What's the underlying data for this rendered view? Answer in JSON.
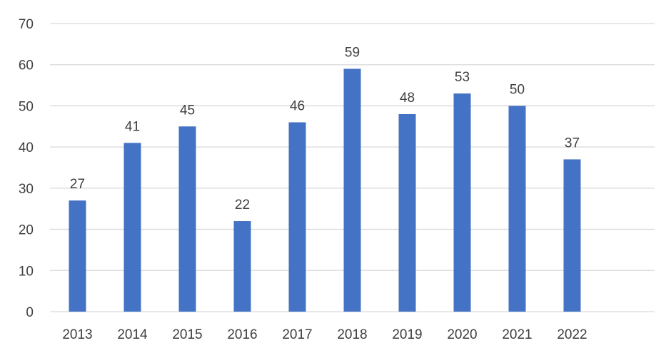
{
  "chart_data": {
    "type": "bar",
    "categories": [
      "2013",
      "2014",
      "2015",
      "2016",
      "2017",
      "2018",
      "2019",
      "2020",
      "2021",
      "2022"
    ],
    "values": [
      27,
      41,
      45,
      22,
      46,
      59,
      48,
      53,
      50,
      37
    ],
    "ylim": [
      0,
      70
    ],
    "yticks": [
      0,
      10,
      20,
      30,
      40,
      50,
      60,
      70
    ],
    "grid": true,
    "data_labels": true,
    "bar_color": "#4472C4",
    "grid_color": "#D9D9D9",
    "title": "",
    "xlabel": "",
    "ylabel": ""
  }
}
